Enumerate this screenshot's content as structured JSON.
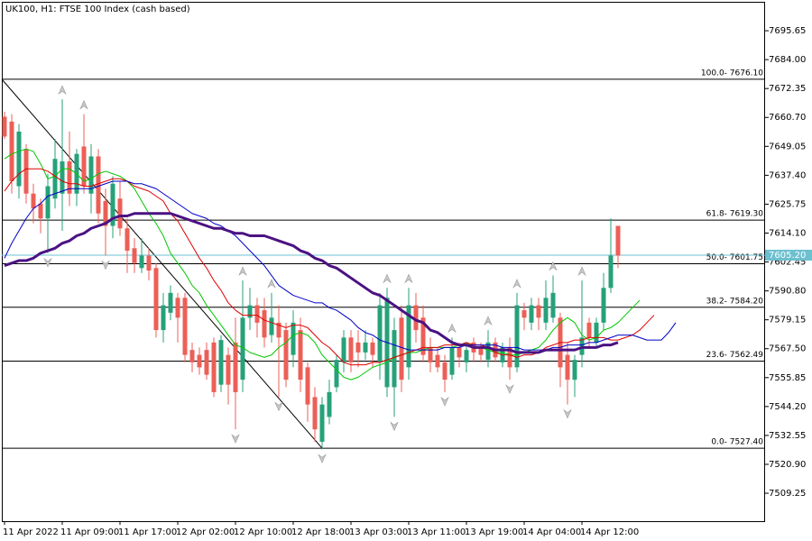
{
  "chart_data": {
    "type": "candlestick",
    "title": "UK100, H1:  FTSE 100 Index (cash based)",
    "categories": [
      "11 Apr 2022",
      null,
      null,
      null,
      null,
      null,
      null,
      null,
      "11 Apr 09:00",
      null,
      null,
      null,
      null,
      null,
      null,
      null,
      "11 Apr 17:00",
      null,
      null,
      null,
      null,
      null,
      null,
      null,
      "12 Apr 02:00",
      null,
      null,
      null,
      null,
      null,
      null,
      null,
      "12 Apr 10:00",
      null,
      null,
      null,
      null,
      null,
      null,
      null,
      "12 Apr 18:00",
      null,
      null,
      null,
      null,
      null,
      null,
      null,
      "13 Apr 03:00",
      null,
      null,
      null,
      null,
      null,
      null,
      null,
      "13 Apr 11:00",
      null,
      null,
      null,
      null,
      null,
      null,
      null,
      "13 Apr 19:00",
      null,
      null,
      null,
      null,
      null,
      null,
      null,
      "14 Apr 04:00",
      null,
      null,
      null,
      null,
      null,
      null,
      null,
      "14 Apr 12:00",
      null,
      null,
      null,
      null,
      null,
      null,
      null,
      null,
      null,
      null,
      null,
      null,
      null
    ],
    "open": [
      7661,
      7659,
      7633,
      7648,
      7630,
      7626,
      7620,
      7628,
      7630,
      7643,
      7630,
      7649,
      7630,
      7645,
      7627,
      7617,
      7628,
      7616,
      7608,
      7600,
      7605,
      7600,
      7575,
      7582,
      7588,
      7588,
      7567,
      7565,
      7567,
      7570,
      7553,
      7565,
      7570,
      7555,
      7580,
      7585,
      7583,
      7573,
      7578,
      7575,
      7565,
      7575,
      7560,
      7548,
      7530,
      7540,
      7552,
      7562,
      7572,
      7570,
      7566,
      7570,
      7562,
      7552,
      7552,
      7580,
      7560,
      7585,
      7580,
      7568,
      7565,
      7562,
      7557,
      7568,
      7562,
      7570,
      7568,
      7563,
      7570,
      7562,
      7568,
      7560,
      7583,
      7578,
      7585,
      7578,
      7580,
      7580,
      7565,
      7555,
      7565,
      7578,
      7570,
      7578,
      7592,
      7617,
      null,
      null,
      null,
      null,
      null,
      null,
      null,
      null
    ],
    "high": [
      7663,
      7662,
      7658,
      7650,
      7634,
      7628,
      7638,
      7652,
      7668,
      7655,
      7648,
      7662,
      7650,
      7648,
      7632,
      7637,
      7635,
      7620,
      7612,
      7612,
      7608,
      7602,
      7590,
      7593,
      7590,
      7590,
      7570,
      7568,
      7570,
      7572,
      7573,
      7568,
      7580,
      7595,
      7592,
      7588,
      7588,
      7590,
      7585,
      7578,
      7583,
      7580,
      7562,
      7552,
      7548,
      7555,
      7565,
      7575,
      7575,
      7575,
      7575,
      7572,
      7590,
      7592,
      7580,
      7585,
      7592,
      7590,
      7585,
      7572,
      7568,
      7565,
      7572,
      7570,
      7570,
      7572,
      7570,
      7575,
      7572,
      7570,
      7572,
      7590,
      7586,
      7588,
      7588,
      7595,
      7597,
      7582,
      7570,
      7565,
      7595,
      7580,
      7580,
      7598,
      7620,
      7617,
      null,
      null,
      null,
      null,
      null,
      null,
      null,
      null
    ],
    "low": [
      7652,
      7630,
      7628,
      7626,
      7618,
      7614,
      7606,
      7624,
      7615,
      7625,
      7625,
      7630,
      7622,
      7618,
      7605,
      7612,
      7613,
      7598,
      7598,
      7598,
      7595,
      7572,
      7570,
      7579,
      7570,
      7562,
      7558,
      7557,
      7555,
      7548,
      7550,
      7545,
      7535,
      7550,
      7575,
      7572,
      7568,
      7570,
      7548,
      7552,
      7560,
      7550,
      7538,
      7530,
      7527,
      7537,
      7550,
      7558,
      7558,
      7560,
      7563,
      7560,
      7555,
      7548,
      7540,
      7550,
      7555,
      7570,
      7562,
      7558,
      7558,
      7550,
      7555,
      7560,
      7558,
      7562,
      7562,
      7560,
      7562,
      7560,
      7555,
      7558,
      7575,
      7575,
      7575,
      7575,
      7578,
      7552,
      7545,
      7548,
      7560,
      7568,
      7568,
      7575,
      7590,
      7600,
      null,
      null,
      null,
      null,
      null,
      null,
      null,
      null
    ],
    "close": [
      7653,
      7635,
      7655,
      7630,
      7624,
      7620,
      7633,
      7644,
      7643,
      7630,
      7646,
      7633,
      7645,
      7622,
      7617,
      7634,
      7616,
      7607,
      7602,
      7605,
      7599,
      7575,
      7585,
      7590,
      7580,
      7565,
      7562,
      7560,
      7557,
      7550,
      7571,
      7553,
      7550,
      7580,
      7585,
      7578,
      7572,
      7580,
      7572,
      7555,
      7578,
      7555,
      7545,
      7535,
      7545,
      7550,
      7563,
      7572,
      7562,
      7566,
      7570,
      7565,
      7585,
      7588,
      7575,
      7555,
      7585,
      7575,
      7565,
      7562,
      7560,
      7555,
      7568,
      7564,
      7567,
      7566,
      7565,
      7570,
      7564,
      7568,
      7560,
      7585,
      7580,
      7585,
      7580,
      7588,
      7590,
      7560,
      7555,
      7563,
      7572,
      7572,
      7578,
      7592,
      7605,
      7605,
      null,
      null,
      null,
      null,
      null,
      null,
      null,
      null
    ],
    "up_color": "#26a17a",
    "down_color": "#ec5f57",
    "series": [
      {
        "color": "#00c800",
        "line_width": 1,
        "values": [
          7644,
          7646,
          7647,
          7648,
          7647,
          7642,
          7636,
          7637,
          7640,
          7640,
          7638,
          7635,
          7636,
          7638,
          7639,
          7638,
          7637,
          7635,
          7632,
          7627,
          7622,
          7618,
          7613,
          7606,
          7602,
          7598,
          7593,
          7590,
          7585,
          7581,
          7577,
          7573,
          7569,
          7568,
          7566,
          7565,
          7564,
          7565,
          7568,
          7570,
          7573,
          7574,
          7573,
          7570,
          7565,
          7562,
          7559,
          7556,
          7555,
          7556,
          7558,
          7560,
          7561,
          7562,
          7564,
          7565,
          7566,
          7566,
          7567,
          7568,
          7568,
          7568,
          7568,
          7569,
          7570,
          7568,
          7568,
          7567,
          7566,
          7566,
          7565,
          7565,
          7566,
          7567,
          7568,
          7571,
          7575,
          7578,
          7580,
          7578,
          7573,
          7571,
          7572,
          7575,
          7576,
          7578,
          7581,
          7584,
          7587,
          null,
          null,
          null,
          null,
          null
        ]
      },
      {
        "color": "#e00000",
        "line_width": 1,
        "values": [
          7631,
          7635,
          7638,
          7640,
          7640,
          7640,
          7639,
          7637,
          7635,
          7634,
          7634,
          7633,
          7633,
          7634,
          7635,
          7636,
          7636,
          7635,
          7633,
          7632,
          7631,
          7629,
          7627,
          7622,
          7619,
          7614,
          7609,
          7604,
          7600,
          7595,
          7591,
          7586,
          7583,
          7581,
          7581,
          7581,
          7579,
          7578,
          7577,
          7576,
          7577,
          7577,
          7576,
          7573,
          7570,
          7568,
          7565,
          7562,
          7561,
          7561,
          7561,
          7562,
          7562,
          7563,
          7564,
          7565,
          7566,
          7567,
          7568,
          7568,
          7568,
          7569,
          7569,
          7569,
          7570,
          7569,
          7569,
          7568,
          7566,
          7565,
          7565,
          7564,
          7565,
          7565,
          7566,
          7568,
          7569,
          7570,
          7570,
          7571,
          7571,
          7572,
          7572,
          7572,
          7571,
          7571,
          7572,
          7573,
          7575,
          7578,
          7581,
          null,
          null,
          null
        ]
      },
      {
        "color": "#0000c8",
        "line_width": 1,
        "values": [
          7604,
          7610,
          7615,
          7620,
          7624,
          7626,
          7629,
          7630,
          7631,
          7632,
          7632,
          7632,
          7632,
          7633,
          7634,
          7635,
          7635,
          7635,
          7634,
          7634,
          7633,
          7632,
          7630,
          7628,
          7626,
          7624,
          7622,
          7621,
          7620,
          7618,
          7617,
          7615,
          7613,
          7610,
          7607,
          7604,
          7601,
          7597,
          7593,
          7591,
          7589,
          7588,
          7587,
          7586,
          7586,
          7584,
          7583,
          7581,
          7579,
          7576,
          7574,
          7573,
          7571,
          7570,
          7569,
          7568,
          7567,
          7567,
          7567,
          7567,
          7567,
          7568,
          7568,
          7568,
          7569,
          7569,
          7569,
          7569,
          7569,
          7568,
          7568,
          7568,
          7567,
          7567,
          7567,
          7567,
          7568,
          7568,
          7569,
          7569,
          7569,
          7570,
          7570,
          7571,
          7572,
          7573,
          7573,
          7573,
          7572,
          7571,
          7571,
          7571,
          7574,
          7578
        ]
      },
      {
        "color": "#4b1282",
        "line_width": 3,
        "values": [
          7601,
          7602,
          7603,
          7603,
          7604,
          7606,
          7607,
          7608,
          7610,
          7611,
          7613,
          7614,
          7616,
          7617,
          7618,
          7620,
          7621,
          7621,
          7622,
          7622,
          7622,
          7622,
          7622,
          7622,
          7621,
          7620,
          7619,
          7618,
          7617,
          7616,
          7616,
          7615,
          7614,
          7614,
          7613,
          7613,
          7613,
          7612,
          7611,
          7610,
          7609,
          7607,
          7606,
          7604,
          7603,
          7601,
          7600,
          7598,
          7596,
          7594,
          7592,
          7590,
          7589,
          7587,
          7585,
          7583,
          7581,
          7579,
          7578,
          7575,
          7574,
          7572,
          7570,
          7569,
          7569,
          7568,
          7568,
          7568,
          7567,
          7567,
          7567,
          7566,
          7566,
          7566,
          7566,
          7567,
          7567,
          7567,
          7567,
          7567,
          7568,
          7568,
          7568,
          7569,
          7569,
          7570,
          null,
          null,
          null,
          null,
          null,
          null,
          null,
          null
        ]
      }
    ],
    "fib_levels": [
      {
        "value": 7676.1,
        "label": "100.0- 7676.10"
      },
      {
        "value": 7619.3,
        "label": "61.8- 7619.30"
      },
      {
        "value": 7601.75,
        "label": "50.0- 7601.75"
      },
      {
        "value": 7584.2,
        "label": "38.2- 7584.20"
      },
      {
        "value": 7562.49,
        "label": "23.6- 7562.49"
      },
      {
        "value": 7527.4,
        "label": "0.0- 7527.40"
      }
    ],
    "bid": {
      "value": 7605.2,
      "label": "7605.20",
      "color": "#6cc0cf"
    },
    "ylim": [
      7498,
      7707.3
    ],
    "yticks": [
      7695.65,
      {
        "value": 7684,
        "label": "7684.00"
      },
      7672.35,
      {
        "value": 7660.7,
        "label": "7660.70"
      },
      7649.05,
      {
        "value": 7637.4,
        "label": "7637.40"
      },
      7625.75,
      {
        "value": 7614.1,
        "label": "7614.10"
      },
      7602.45,
      {
        "value": 7590.8,
        "label": "7590.80"
      },
      7579.15,
      {
        "value": 7567.5,
        "label": "7567.50"
      },
      7555.85,
      {
        "value": 7544.2,
        "label": "7544.20"
      },
      7532.55,
      {
        "value": 7520.9,
        "label": "7520.90"
      },
      7509.25
    ],
    "grid": false
  }
}
